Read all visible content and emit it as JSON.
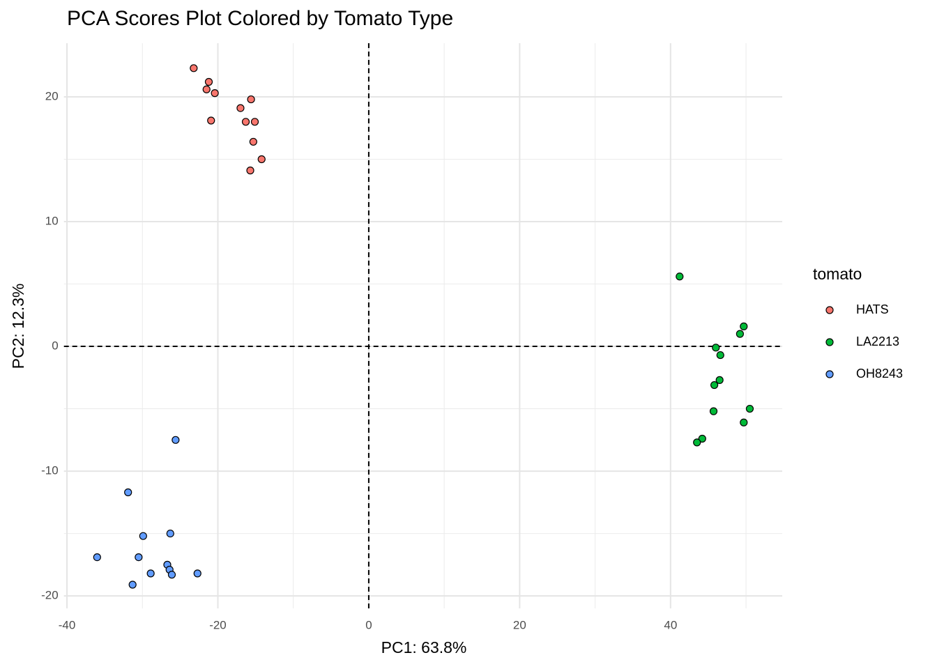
{
  "chart_data": {
    "type": "scatter",
    "title": "PCA Scores Plot Colored by Tomato Type",
    "x_label": "PC1: 63.8%",
    "y_label": "PC2: 12.3%",
    "legend_title": "tomato",
    "legend_position": "right",
    "grid": true,
    "xlim": [
      -40.4,
      54.8
    ],
    "ylim": [
      -21,
      24.3
    ],
    "xticks": [
      -40,
      -20,
      0,
      20,
      40
    ],
    "yticks": [
      -20,
      -10,
      0,
      10,
      20
    ],
    "xminorticks": [
      -30,
      -10,
      10,
      30,
      50
    ],
    "yminorticks": [
      -15,
      -5,
      5,
      15
    ],
    "reference_lines": {
      "x": 0,
      "y": 0
    },
    "series": [
      {
        "name": "HATS",
        "color": "#F8766D",
        "x": [
          -23.2,
          -21.2,
          -21.5,
          -20.4,
          -15.6,
          -17.0,
          -16.3,
          -15.1,
          -20.9,
          -15.3,
          -14.2,
          -15.7
        ],
        "values": [
          22.3,
          21.2,
          20.6,
          20.3,
          19.8,
          19.1,
          18.0,
          18.0,
          18.1,
          16.4,
          15.0,
          14.1
        ]
      },
      {
        "name": "LA2213",
        "color": "#00BA38",
        "x": [
          41.2,
          49.7,
          49.2,
          46.0,
          46.6,
          46.5,
          45.8,
          50.5,
          45.7,
          49.7,
          44.2,
          43.5
        ],
        "values": [
          5.6,
          1.6,
          1.0,
          -0.1,
          -0.7,
          -2.7,
          -3.1,
          -5.0,
          -5.2,
          -6.1,
          -7.4,
          -7.7
        ]
      },
      {
        "name": "OH8243",
        "color": "#619CFF",
        "x": [
          -25.6,
          -31.9,
          -29.9,
          -26.3,
          -36.0,
          -30.5,
          -26.7,
          -26.4,
          -26.1,
          -28.9,
          -22.7,
          -31.3
        ],
        "values": [
          -7.5,
          -11.7,
          -15.2,
          -15.0,
          -16.9,
          -16.9,
          -17.5,
          -17.9,
          -18.3,
          -18.2,
          -18.2,
          -19.1
        ]
      }
    ]
  }
}
